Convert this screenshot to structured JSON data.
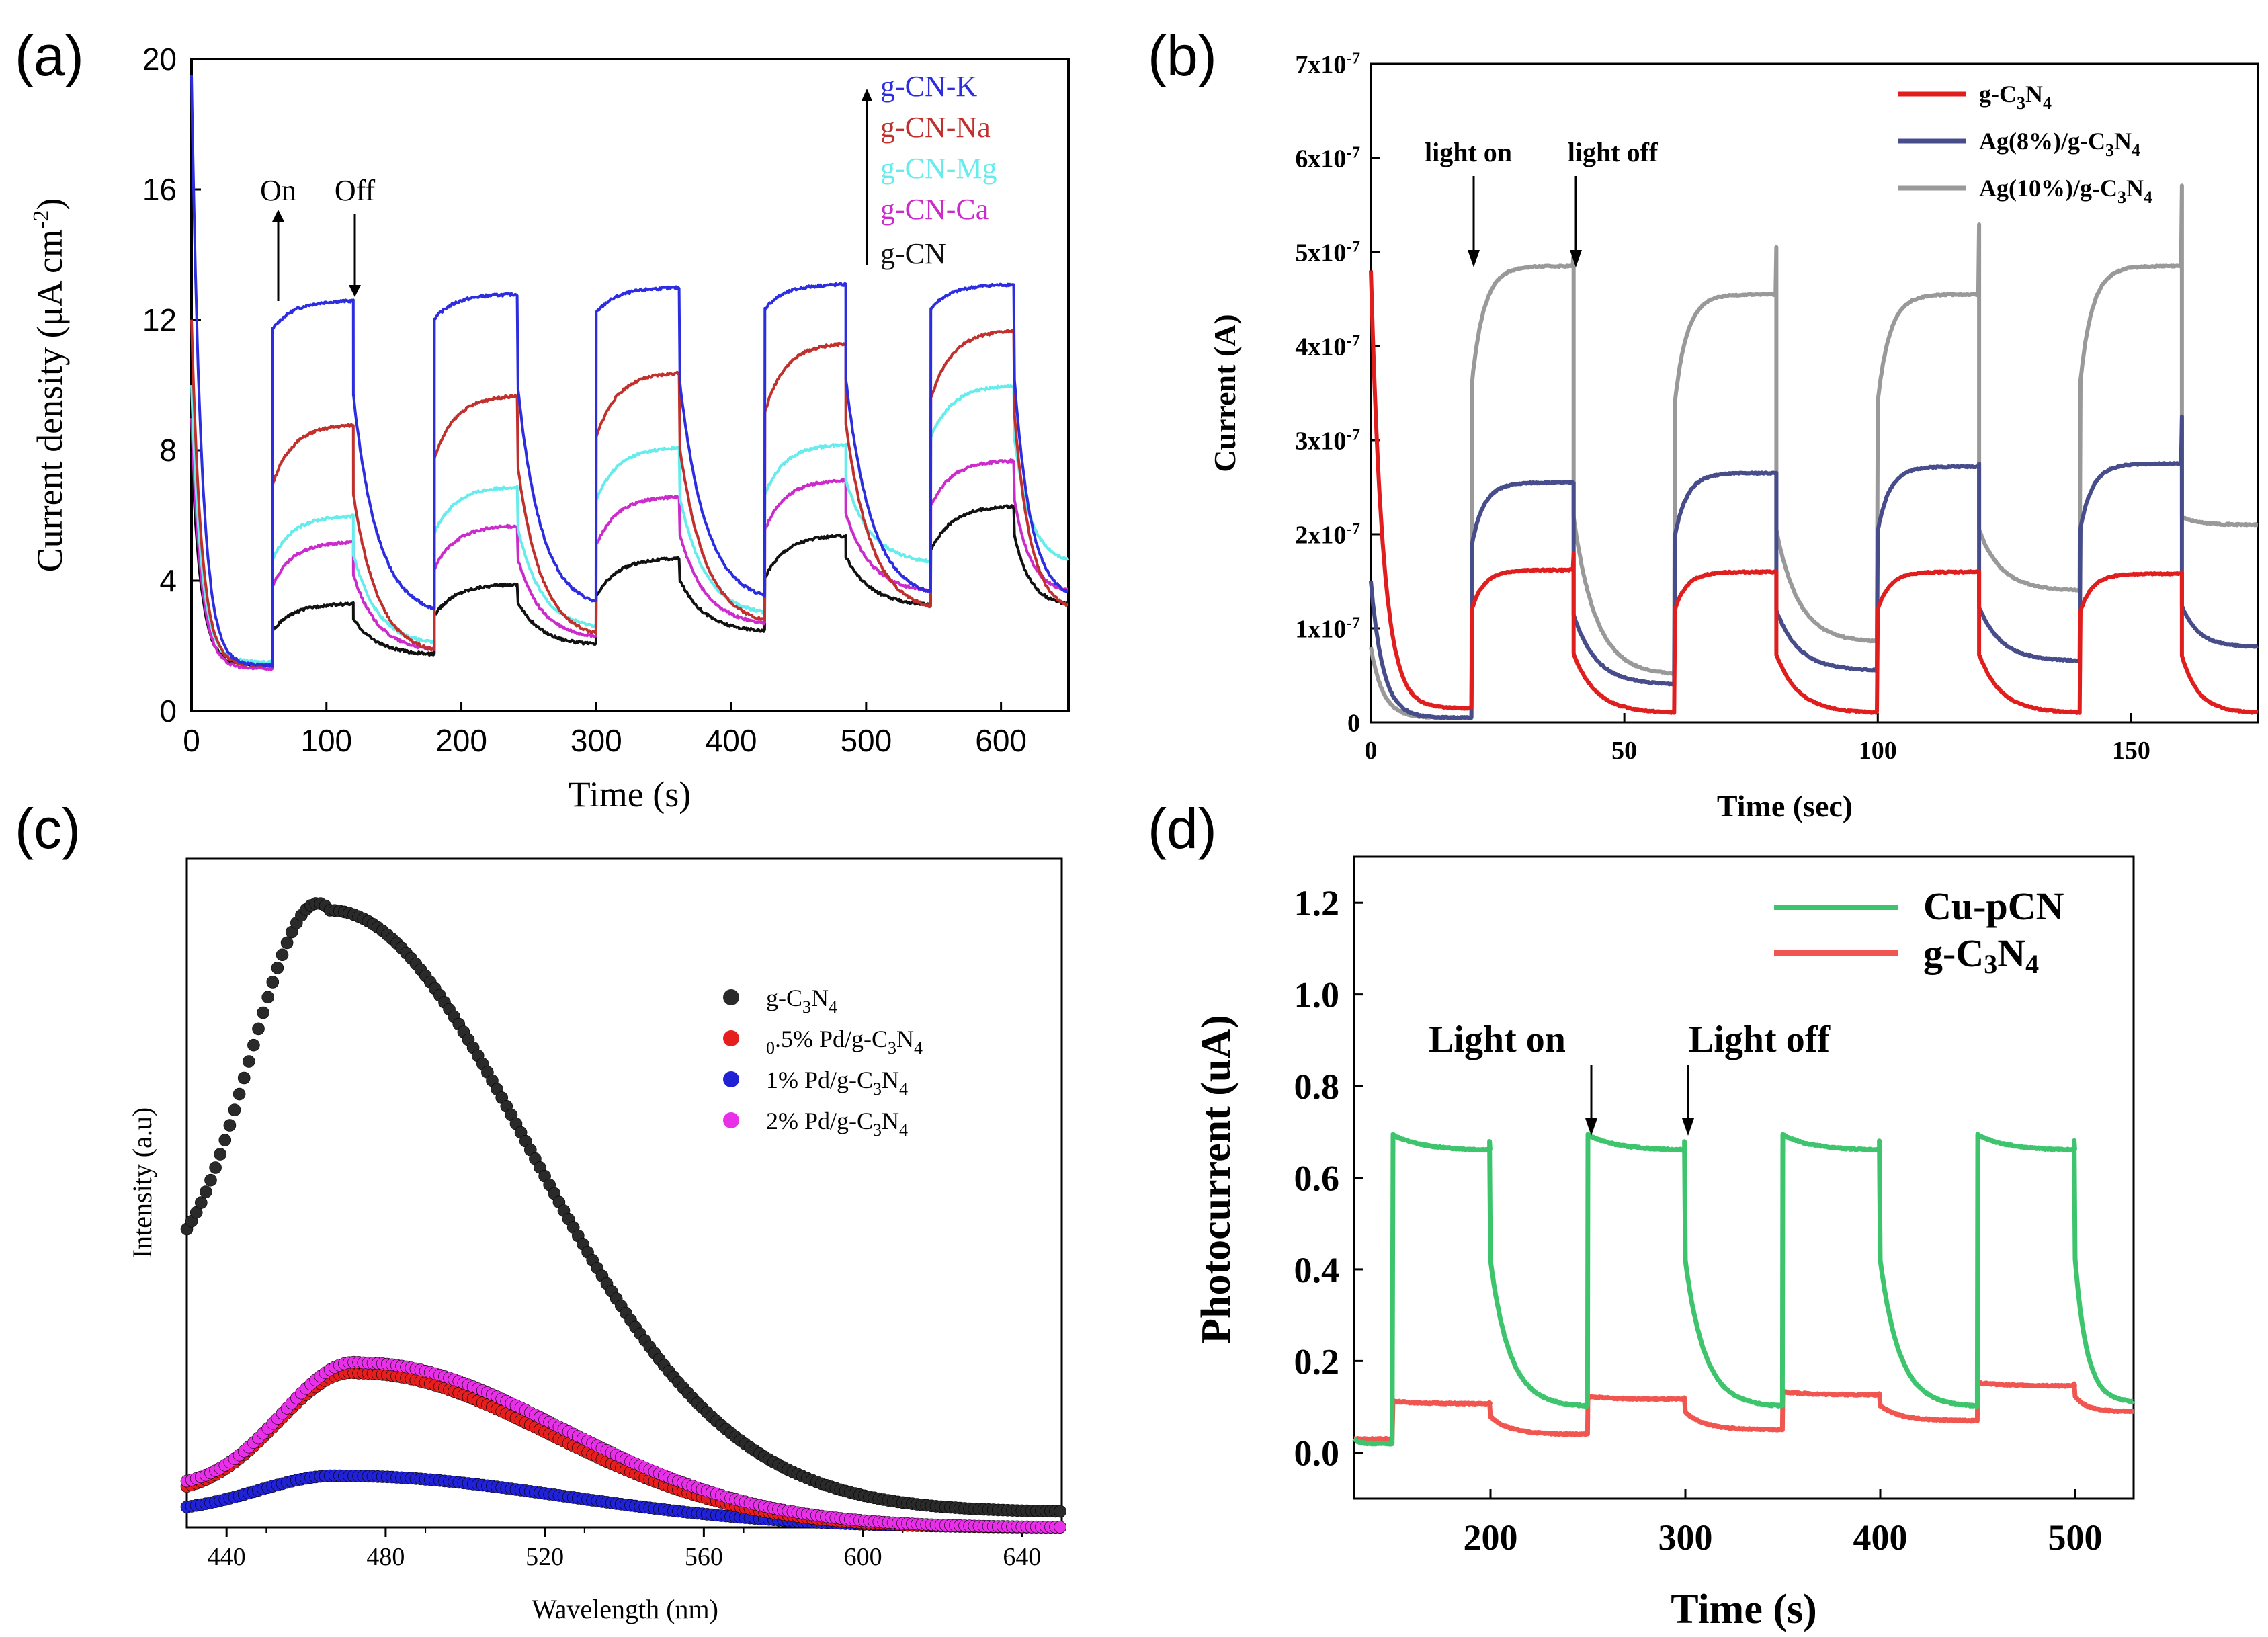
{
  "figure": {
    "panel_labels": [
      "(a)",
      "(b)",
      "(c)",
      "(d)"
    ]
  },
  "chart_data": [
    {
      "panel": "(a)",
      "type": "line",
      "title": "",
      "xlabel": "Time (s)",
      "ylabel": "Current density (μA cm⁻²)",
      "ylabel_text": "Current density (μA cm",
      "ylabel_sup": "-2",
      "ylabel_close": ")",
      "xlim": [
        0,
        650
      ],
      "ylim": [
        0,
        20
      ],
      "xticks": [
        0,
        100,
        200,
        300,
        400,
        500,
        600
      ],
      "yticks": [
        0,
        4,
        8,
        12,
        16,
        20
      ],
      "annotations": [
        {
          "text": "On",
          "x": 60
        },
        {
          "text": "Off",
          "x": 120
        }
      ],
      "legend": "top-right",
      "light_on": [
        60,
        180,
        300,
        425,
        548
      ],
      "light_off": [
        120,
        242,
        362,
        485,
        610
      ],
      "series": [
        {
          "name": "g-CN-K",
          "color": "#2d2de0",
          "initial": 19.5,
          "dark": [
            1.4,
            2.9,
            3.1,
            3.3,
            3.4
          ],
          "light": [
            12.6,
            12.8,
            13.0,
            13.1,
            13.1
          ],
          "rise": 0.08,
          "drift": 0.02
        },
        {
          "name": "g-CN-Na",
          "color": "#c0302c",
          "initial": 12.0,
          "dark": [
            1.4,
            1.7,
            2.2,
            2.6,
            3.0
          ],
          "light": [
            8.8,
            9.7,
            10.4,
            11.3,
            11.7
          ],
          "rise": 0.25,
          "drift": 0.15
        },
        {
          "name": "g-CN-Mg",
          "color": "#66ecec",
          "initial": 10.0,
          "dark": [
            1.5,
            2.0,
            2.5,
            2.9,
            4.5
          ],
          "light": [
            6.0,
            6.9,
            8.1,
            8.2,
            10.0
          ],
          "rise": 0.3,
          "drift": 0.2
        },
        {
          "name": "g-CN-Ca",
          "color": "#cc2bcc",
          "initial": 9.0,
          "dark": [
            1.3,
            1.8,
            2.2,
            2.6,
            3.6
          ],
          "light": [
            5.2,
            5.7,
            6.6,
            7.1,
            7.7
          ],
          "rise": 0.35,
          "drift": 0.25
        },
        {
          "name": "g-CN",
          "color": "#111111",
          "initial": 8.0,
          "dark": [
            1.4,
            1.7,
            2.0,
            2.4,
            3.2
          ],
          "light": [
            3.3,
            3.9,
            4.7,
            5.4,
            6.3
          ],
          "rise": 0.45,
          "drift": 0.2
        }
      ]
    },
    {
      "panel": "(b)",
      "type": "line",
      "title": "",
      "xlabel": "Time (sec)",
      "ylabel": "Current (A)",
      "xlim": [
        0,
        175
      ],
      "ylim": [
        0,
        7e-07
      ],
      "xticks": [
        0,
        50,
        100,
        150
      ],
      "yticks": [
        0,
        1e-07,
        2e-07,
        3e-07,
        4e-07,
        5e-07,
        6e-07,
        7e-07
      ],
      "ytick_labels": [
        "0",
        "1x10-7",
        "2x10-7",
        "3x10-7",
        "4x10-7",
        "5x10-7",
        "6x10-7",
        "7x10-7"
      ],
      "annotations": [
        {
          "text": "light on",
          "x": 20
        },
        {
          "text": "light off",
          "x": 40
        }
      ],
      "legend": "top-right",
      "light_on": [
        20,
        60,
        100,
        140
      ],
      "light_off": [
        40,
        80,
        120,
        160
      ],
      "series": [
        {
          "name": "g-C3N4",
          "color": "#e01e1e",
          "initial": 4.8e-07,
          "dark": [
            1.5e-08,
            1e-08,
            1e-08,
            1e-08,
            1e-08
          ],
          "light": [
            1.62e-07,
            1.6e-07,
            1.6e-07,
            1.58e-07
          ],
          "spike": [
            1.8e-07,
            1.6e-07,
            1.6e-07,
            1.6e-07
          ]
        },
        {
          "name": "Ag(8%)/g-C3N4",
          "color": "#474d8a",
          "initial": 1.5e-07,
          "dark": [
            5e-09,
            4e-08,
            5.5e-08,
            6.5e-08,
            8e-08
          ],
          "light": [
            2.55e-07,
            2.65e-07,
            2.72e-07,
            2.75e-07
          ],
          "spike": [
            2.55e-07,
            2.65e-07,
            2.75e-07,
            3.25e-07
          ]
        },
        {
          "name": "Ag(10%)/g-C3N4",
          "color": "#999999",
          "initial": 8e-08,
          "dark": [
            5e-09,
            5e-08,
            8.5e-08,
            1.4e-07,
            2.1e-07
          ],
          "light": [
            4.85e-07,
            4.55e-07,
            4.55e-07,
            4.85e-07
          ],
          "spike": [
            5e-07,
            5.05e-07,
            5.3e-07,
            5.7e-07
          ]
        }
      ]
    },
    {
      "panel": "(c)",
      "type": "scatter",
      "title": "",
      "xlabel": "Wavelength (nm)",
      "ylabel": "Intensity (a.u)",
      "xlim": [
        430,
        650
      ],
      "ylim": [
        0,
        1.3
      ],
      "xticks": [
        440,
        480,
        520,
        560,
        600,
        640
      ],
      "legend": "middle-right",
      "series": [
        {
          "name": "g-C3N4",
          "color": "#2a2a2a",
          "highlight": "#9a9a9a",
          "peak_x": 466,
          "peak_y": 1.2,
          "base": 0.03,
          "sigma_left": 20,
          "sigma_right": 50,
          "start_y": 0.58
        },
        {
          "name": "0.5% Pd/g-C3N4",
          "color": "#e51e1e",
          "highlight": "#ff9a9a",
          "peak_x": 473,
          "peak_y": 0.3,
          "base": 0.0,
          "sigma_left": 20,
          "sigma_right": 48,
          "start_y": 0.08
        },
        {
          "name": "1% Pd/g-C3N4",
          "color": "#2121d6",
          "highlight": "#8f8fff",
          "peak_x": 470,
          "peak_y": 0.1,
          "base": 0.0,
          "sigma_left": 22,
          "sigma_right": 55,
          "start_y": 0.04
        },
        {
          "name": "2% Pd/g-C3N4",
          "color": "#e830e8",
          "highlight": "#ffb4ff",
          "peak_x": 474,
          "peak_y": 0.32,
          "base": 0.0,
          "sigma_left": 20,
          "sigma_right": 50,
          "start_y": 0.09
        }
      ]
    },
    {
      "panel": "(d)",
      "type": "line",
      "title": "",
      "xlabel": "Time (s)",
      "ylabel": "Photocurrent (uA)",
      "xlim": [
        130,
        530
      ],
      "ylim": [
        -0.1,
        1.3
      ],
      "xticks": [
        200,
        300,
        400,
        500
      ],
      "yticks": [
        0.0,
        0.2,
        0.4,
        0.6,
        0.8,
        1.0,
        1.2
      ],
      "ytick_labels": [
        "0.0",
        "0.2",
        "0.4",
        "0.6",
        "0.8",
        "1.0",
        "1.2"
      ],
      "annotations": [
        {
          "text": "Light on",
          "x": 250
        },
        {
          "text": "Light off",
          "x": 300
        }
      ],
      "legend": "top-right",
      "light_on": [
        150,
        250,
        350,
        450
      ],
      "light_off": [
        200,
        300,
        400,
        500
      ],
      "series": [
        {
          "name": "Cu-pCN",
          "color": "#3ec46d",
          "initial": 0.03,
          "dark": [
            0.02,
            0.1,
            0.1,
            0.1,
            0.11
          ],
          "light": [
            0.68,
            0.68,
            0.68,
            0.68
          ]
        },
        {
          "name": "g-C3N4",
          "color": "#f0554f",
          "initial": 0.03,
          "dark": [
            0.03,
            0.04,
            0.05,
            0.07,
            0.09
          ],
          "light": [
            0.11,
            0.12,
            0.13,
            0.15
          ]
        }
      ]
    }
  ]
}
